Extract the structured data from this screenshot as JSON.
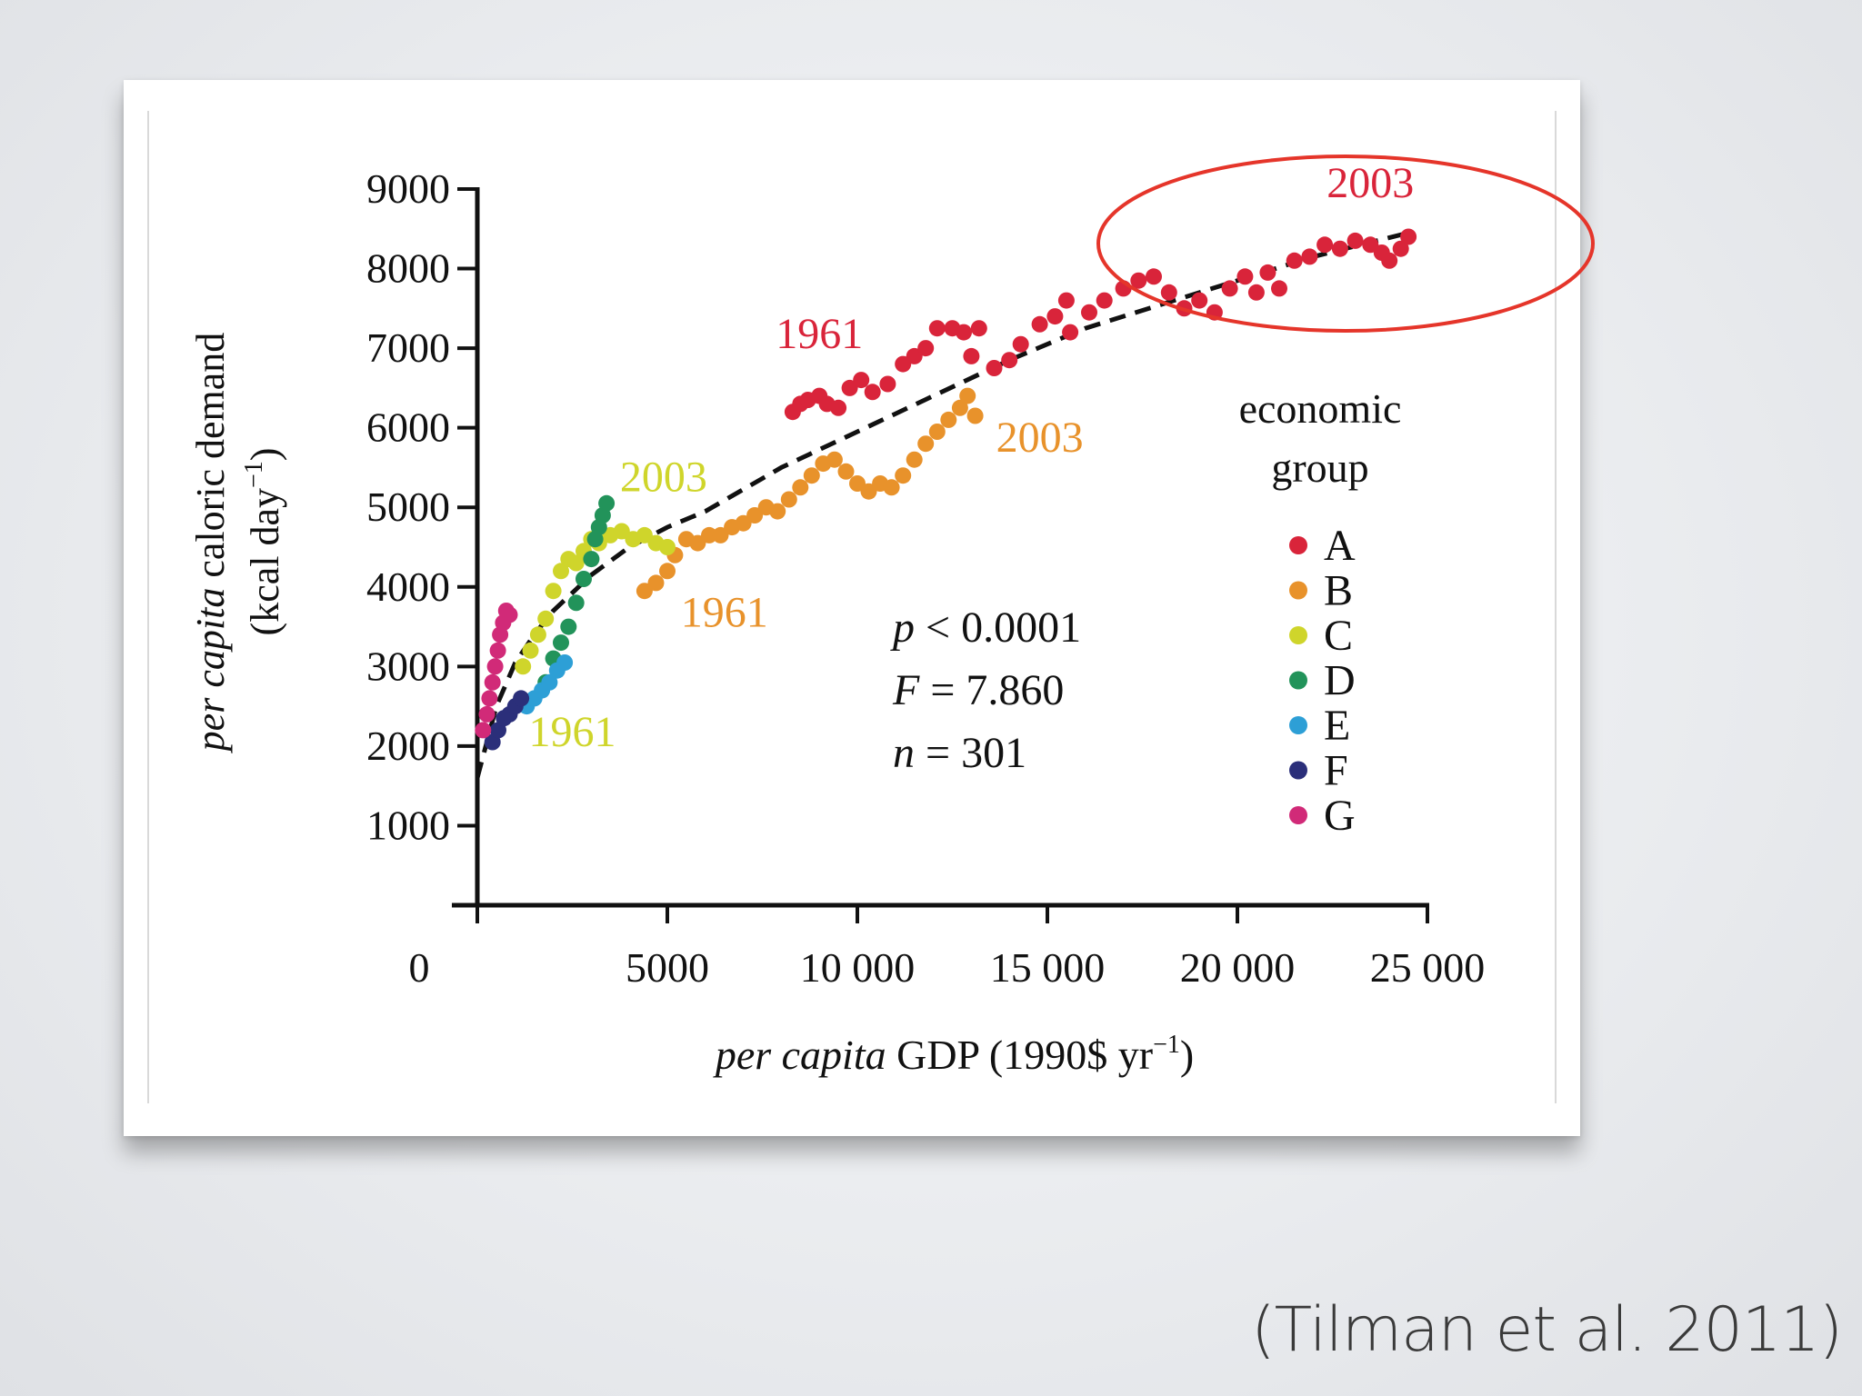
{
  "citation": "(Tilman et al. 2011)",
  "highlight_color": "#e5352a",
  "chart_data": {
    "type": "scatter",
    "title": "",
    "xlabel_italic": "per capita",
    "xlabel_rest": " GDP (1990$ yr",
    "xlabel_sup": "−1",
    "xlabel_close": ")",
    "ylabel_line1_italic": "per capita",
    "ylabel_line1_rest": " caloric demand",
    "ylabel_line2_open": "(kcal day",
    "ylabel_line2_sup": "−1",
    "ylabel_line2_close": ")",
    "xlim": [
      0,
      25000
    ],
    "ylim": [
      0,
      9000
    ],
    "xticks": [
      0,
      5000,
      10000,
      15000,
      20000,
      25000
    ],
    "xtick_labels": [
      "0",
      "5000",
      "10 000",
      "15 000",
      "20 000",
      "25 000"
    ],
    "yticks": [
      1000,
      2000,
      3000,
      4000,
      5000,
      6000,
      7000,
      8000,
      9000
    ],
    "ytick_labels": [
      "1000",
      "2000",
      "3000",
      "4000",
      "5000",
      "6000",
      "7000",
      "8000",
      "9000"
    ],
    "grid": false,
    "stats": {
      "p_var": "p",
      "p_text": " < 0.0001",
      "F_var": "F",
      "F_text": " = 7.860",
      "n_var": "n",
      "n_text": " = 301"
    },
    "legend": {
      "title_line1": "economic",
      "title_line2": "group",
      "placement": "right",
      "entries": [
        {
          "label": "A",
          "color": "#d9243a"
        },
        {
          "label": "B",
          "color": "#e8922b"
        },
        {
          "label": "C",
          "color": "#cfd52b"
        },
        {
          "label": "D",
          "color": "#22935a"
        },
        {
          "label": "E",
          "color": "#2d9fd6"
        },
        {
          "label": "F",
          "color": "#2b2f7a"
        },
        {
          "label": "G",
          "color": "#d12a78"
        }
      ]
    },
    "fit_curve": [
      [
        0,
        1600
      ],
      [
        500,
        2500
      ],
      [
        1000,
        3050
      ],
      [
        1500,
        3400
      ],
      [
        2000,
        3700
      ],
      [
        3000,
        4150
      ],
      [
        4000,
        4500
      ],
      [
        5000,
        4750
      ],
      [
        6000,
        4950
      ],
      [
        8000,
        5500
      ],
      [
        10000,
        5950
      ],
      [
        12000,
        6400
      ],
      [
        14000,
        6850
      ],
      [
        16000,
        7250
      ],
      [
        18000,
        7550
      ],
      [
        20000,
        7850
      ],
      [
        22000,
        8150
      ],
      [
        24500,
        8450
      ]
    ],
    "series": [
      {
        "name": "A",
        "color": "#d9243a",
        "points": [
          [
            8300,
            6200
          ],
          [
            8500,
            6300
          ],
          [
            8700,
            6350
          ],
          [
            9000,
            6400
          ],
          [
            9200,
            6300
          ],
          [
            9500,
            6250
          ],
          [
            9800,
            6500
          ],
          [
            10100,
            6600
          ],
          [
            10400,
            6450
          ],
          [
            10800,
            6550
          ],
          [
            11200,
            6800
          ],
          [
            11500,
            6900
          ],
          [
            11800,
            7000
          ],
          [
            12100,
            7250
          ],
          [
            12500,
            7250
          ],
          [
            12800,
            7200
          ],
          [
            13200,
            7250
          ],
          [
            13000,
            6900
          ],
          [
            13600,
            6750
          ],
          [
            14000,
            6850
          ],
          [
            14300,
            7050
          ],
          [
            14800,
            7300
          ],
          [
            15200,
            7400
          ],
          [
            15500,
            7600
          ],
          [
            15600,
            7200
          ],
          [
            16100,
            7450
          ],
          [
            16500,
            7600
          ],
          [
            17000,
            7750
          ],
          [
            17400,
            7850
          ],
          [
            17800,
            7900
          ],
          [
            18200,
            7700
          ],
          [
            18600,
            7500
          ],
          [
            19000,
            7600
          ],
          [
            19400,
            7450
          ],
          [
            19800,
            7750
          ],
          [
            20200,
            7900
          ],
          [
            20500,
            7700
          ],
          [
            20800,
            7950
          ],
          [
            21100,
            7750
          ],
          [
            21500,
            8100
          ],
          [
            21900,
            8150
          ],
          [
            22300,
            8300
          ],
          [
            22700,
            8250
          ],
          [
            23100,
            8350
          ],
          [
            23500,
            8300
          ],
          [
            23800,
            8200
          ],
          [
            24000,
            8100
          ],
          [
            24300,
            8250
          ],
          [
            24500,
            8400
          ]
        ]
      },
      {
        "name": "B",
        "color": "#e8922b",
        "points": [
          [
            4400,
            3950
          ],
          [
            4700,
            4050
          ],
          [
            5000,
            4200
          ],
          [
            5200,
            4400
          ],
          [
            5500,
            4600
          ],
          [
            5800,
            4550
          ],
          [
            6100,
            4650
          ],
          [
            6400,
            4650
          ],
          [
            6700,
            4750
          ],
          [
            7000,
            4800
          ],
          [
            7300,
            4900
          ],
          [
            7600,
            5000
          ],
          [
            7900,
            4950
          ],
          [
            8200,
            5100
          ],
          [
            8500,
            5250
          ],
          [
            8800,
            5400
          ],
          [
            9100,
            5550
          ],
          [
            9400,
            5600
          ],
          [
            9700,
            5450
          ],
          [
            10000,
            5300
          ],
          [
            10300,
            5200
          ],
          [
            10600,
            5300
          ],
          [
            10900,
            5250
          ],
          [
            11200,
            5400
          ],
          [
            11500,
            5600
          ],
          [
            11800,
            5800
          ],
          [
            12100,
            5950
          ],
          [
            12400,
            6100
          ],
          [
            12700,
            6250
          ],
          [
            12900,
            6400
          ],
          [
            13100,
            6150
          ]
        ]
      },
      {
        "name": "C",
        "color": "#cfd52b",
        "points": [
          [
            1200,
            3000
          ],
          [
            1400,
            3200
          ],
          [
            1600,
            3400
          ],
          [
            1800,
            3600
          ],
          [
            2000,
            3950
          ],
          [
            2200,
            4200
          ],
          [
            2400,
            4350
          ],
          [
            2600,
            4300
          ],
          [
            2800,
            4450
          ],
          [
            3000,
            4600
          ],
          [
            3200,
            4550
          ],
          [
            3500,
            4650
          ],
          [
            3800,
            4700
          ],
          [
            4100,
            4600
          ],
          [
            4400,
            4650
          ],
          [
            4700,
            4550
          ],
          [
            5000,
            4500
          ]
        ]
      },
      {
        "name": "D",
        "color": "#22935a",
        "points": [
          [
            1800,
            2800
          ],
          [
            2000,
            3100
          ],
          [
            2200,
            3300
          ],
          [
            2400,
            3500
          ],
          [
            2600,
            3800
          ],
          [
            2800,
            4100
          ],
          [
            3000,
            4350
          ],
          [
            3100,
            4600
          ],
          [
            3200,
            4750
          ],
          [
            3300,
            4900
          ],
          [
            3400,
            5050
          ]
        ]
      },
      {
        "name": "E",
        "color": "#2d9fd6",
        "points": [
          [
            1300,
            2500
          ],
          [
            1500,
            2600
          ],
          [
            1700,
            2700
          ],
          [
            1900,
            2800
          ],
          [
            2100,
            2950
          ],
          [
            2300,
            3050
          ]
        ]
      },
      {
        "name": "F",
        "color": "#2b2f7a",
        "points": [
          [
            400,
            2050
          ],
          [
            550,
            2200
          ],
          [
            700,
            2350
          ],
          [
            850,
            2400
          ],
          [
            1000,
            2500
          ],
          [
            1150,
            2600
          ]
        ]
      },
      {
        "name": "G",
        "color": "#d12a78",
        "points": [
          [
            150,
            2200
          ],
          [
            250,
            2400
          ],
          [
            320,
            2600
          ],
          [
            400,
            2800
          ],
          [
            470,
            3000
          ],
          [
            540,
            3200
          ],
          [
            600,
            3400
          ],
          [
            680,
            3550
          ],
          [
            760,
            3700
          ],
          [
            850,
            3650
          ]
        ]
      }
    ],
    "annotations": [
      {
        "text": "2003",
        "x": 23500,
        "y": 8900,
        "color": "#d9243a"
      },
      {
        "text": "1961",
        "x": 9000,
        "y": 7000,
        "color": "#d9243a"
      },
      {
        "text": "2003",
        "x": 14800,
        "y": 5700,
        "color": "#e8922b"
      },
      {
        "text": "1961",
        "x": 6500,
        "y": 3500,
        "color": "#e8922b"
      },
      {
        "text": "2003",
        "x": 4900,
        "y": 5200,
        "color": "#cfd52b"
      },
      {
        "text": "1961",
        "x": 2500,
        "y": 2000,
        "color": "#cfd52b"
      }
    ]
  }
}
